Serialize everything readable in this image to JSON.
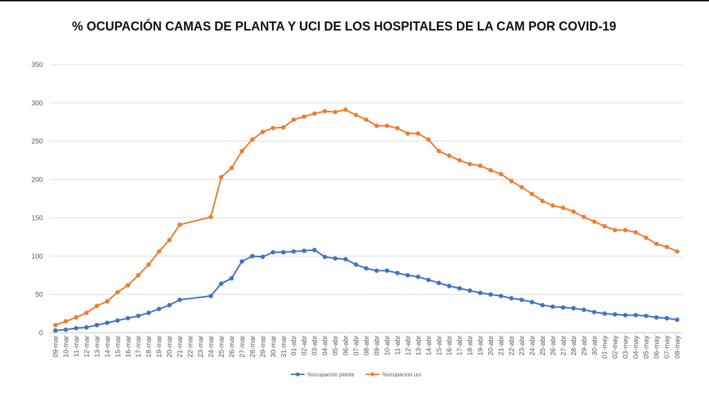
{
  "chart_data": {
    "type": "line",
    "title": "% OCUPACIÓN CAMAS DE PLANTA Y UCI DE LOS HOSPITALES DE LA CAM POR COVID-19",
    "xlabel": "",
    "ylabel": "",
    "ylim": [
      0,
      350
    ],
    "yticks": [
      0,
      50,
      100,
      150,
      200,
      250,
      300,
      350
    ],
    "grid": "horizontal",
    "legend_position": "bottom",
    "categories": [
      "09-mar",
      "10-mar",
      "11-mar",
      "12-mar",
      "13-mar",
      "14-mar",
      "15-mar",
      "16-mar",
      "17-mar",
      "18-mar",
      "19-mar",
      "20-mar",
      "21-mar",
      "22-mar",
      "23-mar",
      "24-mar",
      "25-mar",
      "26-mar",
      "27-mar",
      "28-mar",
      "29-mar",
      "30-mar",
      "31-mar",
      "01-abr",
      "02-abr",
      "03-abr",
      "04-abr",
      "05-abr",
      "06-abr",
      "07-abr",
      "08-abr",
      "09-abr",
      "10-abr",
      "11-abr",
      "12-abr",
      "13-abr",
      "14-abr",
      "15-abr",
      "16-abr",
      "17-abr",
      "18-abr",
      "19-abr",
      "20-abr",
      "21-abr",
      "22-abr",
      "23-abr",
      "24-abr",
      "25-abr",
      "26-abr",
      "27-abr",
      "28-abr",
      "29-abr",
      "30-abr",
      "01-may",
      "02-may",
      "03-may",
      "04-may",
      "05-may",
      "06-may",
      "07-may",
      "08-may"
    ],
    "series": [
      {
        "name": "%ocupacion planta",
        "color": "#4472C4",
        "values": [
          3,
          4,
          6,
          7,
          10,
          13,
          16,
          19,
          22,
          26,
          31,
          36,
          43,
          null,
          null,
          48,
          64,
          71,
          93,
          100,
          99,
          105,
          105,
          106,
          107,
          108,
          99,
          97,
          96,
          89,
          84,
          81,
          81,
          78,
          75,
          73,
          69,
          65,
          61,
          58,
          55,
          52,
          50,
          48,
          45,
          43,
          40,
          36,
          34,
          33,
          32,
          30,
          27,
          25,
          24,
          23,
          23,
          22,
          20,
          19,
          17
        ],
        "markers": "circle"
      },
      {
        "name": "%ocupacion uci",
        "color": "#ED7D31",
        "values": [
          10,
          15,
          20,
          26,
          35,
          41,
          53,
          62,
          75,
          89,
          106,
          121,
          141,
          null,
          null,
          151,
          203,
          215,
          237,
          252,
          262,
          267,
          268,
          278,
          282,
          286,
          289,
          288,
          291,
          284,
          278,
          270,
          270,
          267,
          260,
          260,
          252,
          237,
          231,
          225,
          220,
          218,
          212,
          207,
          198,
          190,
          181,
          172,
          166,
          163,
          158,
          151,
          145,
          139,
          134,
          134,
          131,
          124,
          116,
          112,
          106
        ],
        "markers": "circle"
      }
    ]
  }
}
